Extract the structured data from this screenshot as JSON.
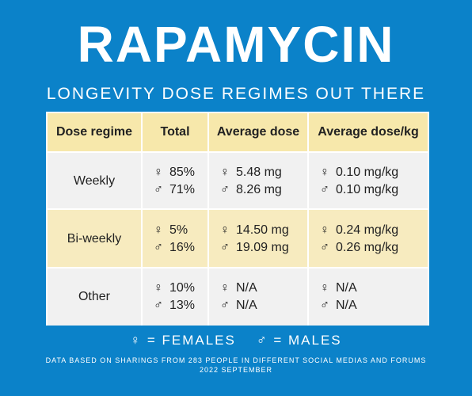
{
  "header": {
    "title": "RAPAMYCIN",
    "subtitle": "LONGEVITY DOSE REGIMES OUT THERE"
  },
  "table": {
    "columns": [
      "Dose regime",
      "Total",
      "Average dose",
      "Average dose/kg"
    ],
    "female_symbol": "♀",
    "male_symbol": "♂",
    "rows": [
      {
        "regime": "Weekly",
        "total": {
          "female": "85%",
          "male": "71%"
        },
        "avg_dose": {
          "female": "5.48 mg",
          "male": "8.26 mg"
        },
        "avg_dose_kg": {
          "female": "0.10 mg/kg",
          "male": "0.10 mg/kg"
        }
      },
      {
        "regime": "Bi-weekly",
        "total": {
          "female": "5%",
          "male": "16%"
        },
        "avg_dose": {
          "female": "14.50 mg",
          "male": "19.09 mg"
        },
        "avg_dose_kg": {
          "female": "0.24 mg/kg",
          "male": "0.26 mg/kg"
        }
      },
      {
        "regime": "Other",
        "total": {
          "female": "10%",
          "male": "13%"
        },
        "avg_dose": {
          "female": "N/A",
          "male": "N/A"
        },
        "avg_dose_kg": {
          "female": "N/A",
          "male": "N/A"
        }
      }
    ]
  },
  "legend": {
    "female": "♀ = FEMALES",
    "male": "♂ = MALES"
  },
  "footnote": {
    "line1": "DATA BASED ON SHARINGS FROM 283 PEOPLE IN DIFFERENT SOCIAL MEDIAS AND FORUMS",
    "line2": "2022 SEPTEMBER"
  },
  "colors": {
    "background": "#0b82c9",
    "header_row": "#f7e8ab",
    "highlight_row": "#f7ebbf",
    "plain_row": "#f1f1f1"
  }
}
